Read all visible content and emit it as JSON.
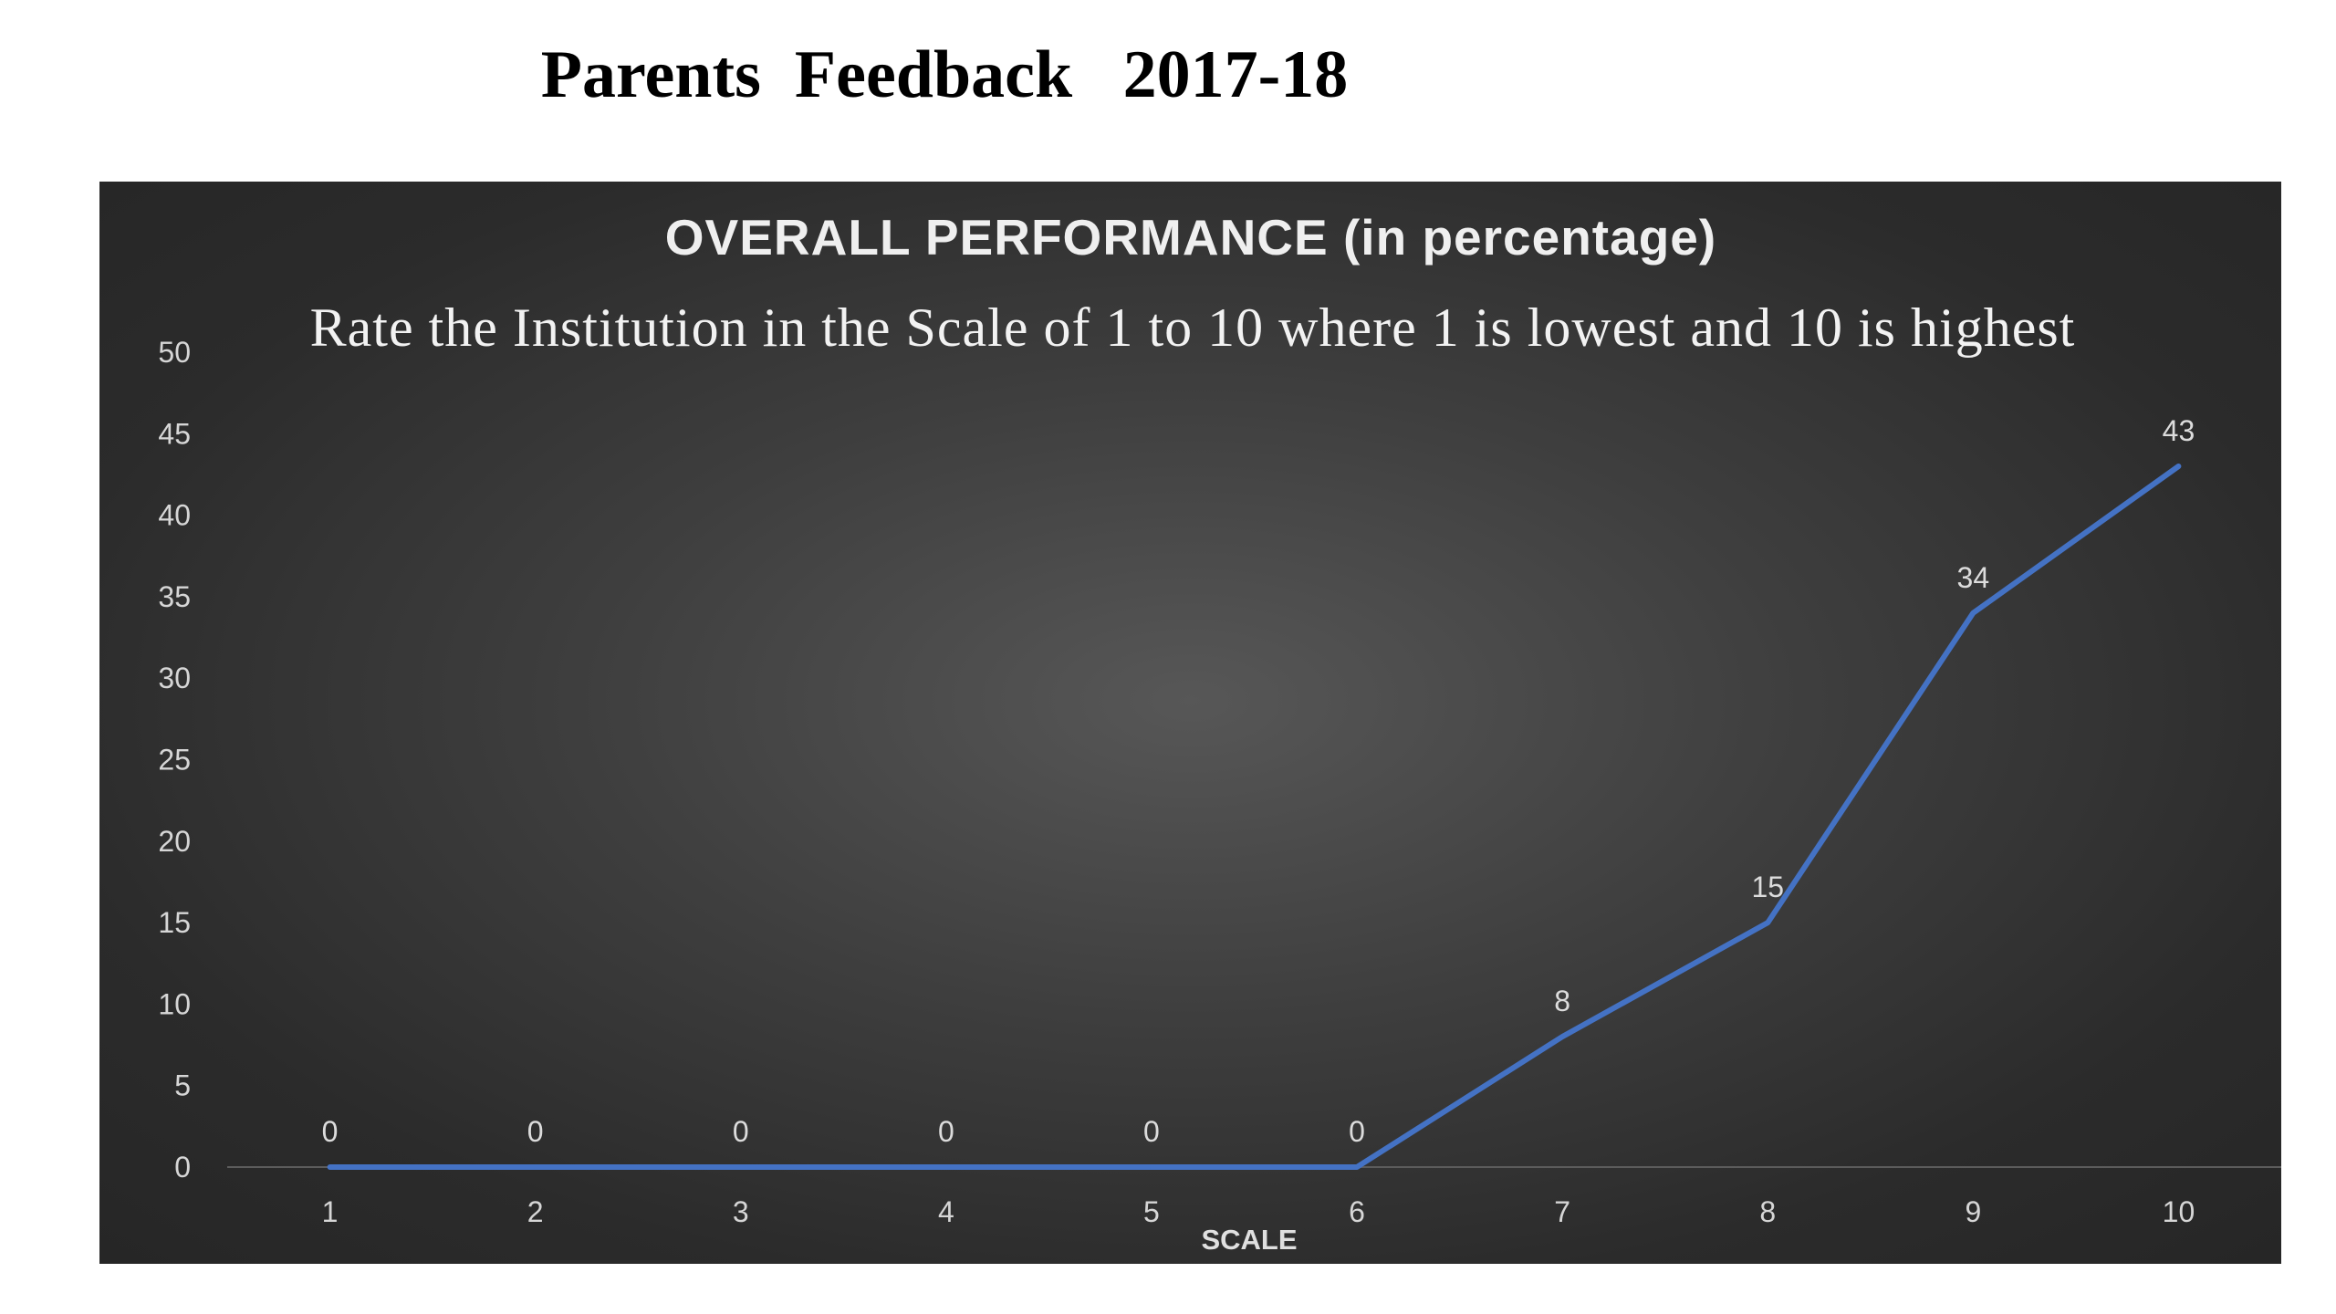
{
  "page": {
    "heading": "Parents  Feedback   2017-18"
  },
  "chart_data": {
    "type": "line",
    "title": "OVERALL PERFORMANCE (in percentage)",
    "subtitle": "Rate the Institution in the Scale of 1 to 10 where 1 is lowest and 10 is highest",
    "xlabel": "SCALE",
    "ylabel": "",
    "categories": [
      "1",
      "2",
      "3",
      "4",
      "5",
      "6",
      "7",
      "8",
      "9",
      "10"
    ],
    "series": [
      {
        "values": [
          0,
          0,
          0,
          0,
          0,
          0,
          8,
          15,
          34,
          43
        ]
      }
    ],
    "ylim": [
      0,
      50
    ],
    "yticks": [
      0,
      5,
      10,
      15,
      20,
      25,
      30,
      35,
      40,
      45,
      50
    ],
    "grid": false,
    "legend": "none",
    "colors": {
      "line": "#4472c4",
      "background": "#3a3a3a",
      "text": "#d9d9d9"
    }
  }
}
